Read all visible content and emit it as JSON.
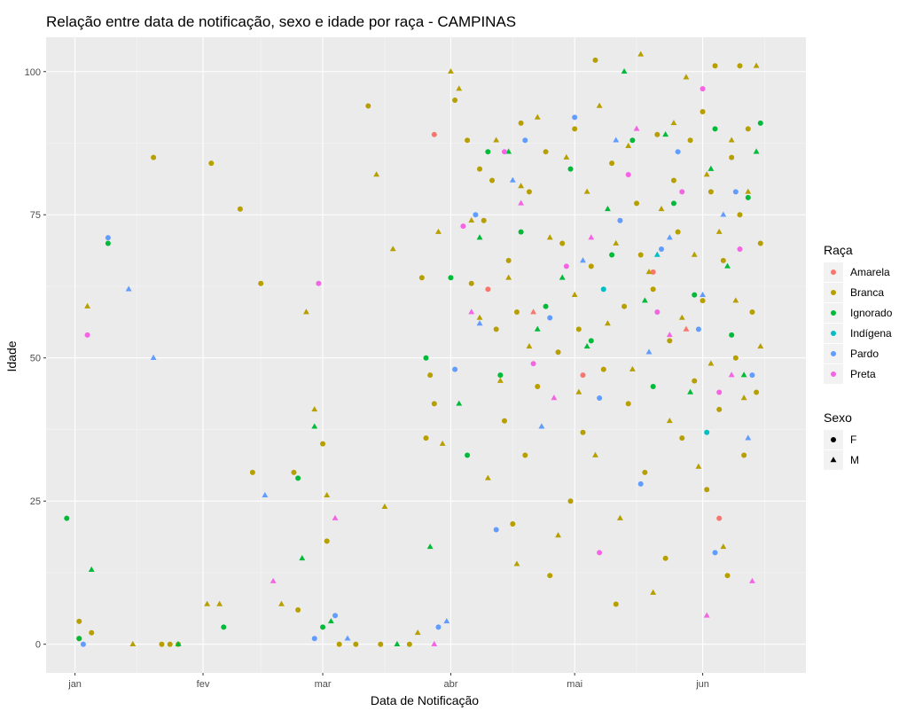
{
  "chart_data": {
    "type": "scatter",
    "title": "Relação entre data de notificação, sexo e idade por raça - CAMPINAS",
    "xlabel": "Data de Notificação",
    "ylabel": "Idade",
    "x_ticks": [
      "jan",
      "fev",
      "mar",
      "abr",
      "mai",
      "jun"
    ],
    "x_tick_dates": [
      "2020-01-01",
      "2020-02-01",
      "2020-03-01",
      "2020-04-01",
      "2020-05-01",
      "2020-06-01"
    ],
    "xlim": [
      "2019-12-25",
      "2020-06-26"
    ],
    "y_ticks": [
      0,
      25,
      50,
      75,
      100
    ],
    "ylim": [
      -5,
      106
    ],
    "grid": true,
    "panel_background": "#ebebeb",
    "legend_position": "right",
    "legend_race": {
      "title": "Raça",
      "items": [
        {
          "name": "Amarela",
          "color": "#F8766D"
        },
        {
          "name": "Branca",
          "color": "#B79F00"
        },
        {
          "name": "Ignorado",
          "color": "#00BA38"
        },
        {
          "name": "Indígena",
          "color": "#00BFC4"
        },
        {
          "name": "Pardo",
          "color": "#619CFF"
        },
        {
          "name": "Preta",
          "color": "#F564E3"
        }
      ]
    },
    "legend_sex": {
      "title": "Sexo",
      "items": [
        {
          "name": "F",
          "shape": "circle"
        },
        {
          "name": "M",
          "shape": "triangle"
        }
      ]
    },
    "series": [
      {
        "name": "Amarela",
        "sex": "F",
        "points": [
          [
            "2020-03-28",
            89
          ],
          [
            "2020-04-10",
            62
          ],
          [
            "2020-05-03",
            47
          ],
          [
            "2020-05-20",
            65
          ],
          [
            "2020-06-05",
            22
          ]
        ]
      },
      {
        "name": "Amarela",
        "sex": "M",
        "points": [
          [
            "2020-04-21",
            58
          ],
          [
            "2020-05-28",
            55
          ]
        ]
      },
      {
        "name": "Branca",
        "sex": "F",
        "points": [
          [
            "2020-01-02",
            1
          ],
          [
            "2020-01-02",
            4
          ],
          [
            "2020-01-05",
            2
          ],
          [
            "2020-01-20",
            85
          ],
          [
            "2020-01-22",
            0
          ],
          [
            "2020-01-24",
            0
          ],
          [
            "2020-01-26",
            0
          ],
          [
            "2020-02-03",
            84
          ],
          [
            "2020-02-10",
            76
          ],
          [
            "2020-02-15",
            63
          ],
          [
            "2020-02-13",
            30
          ],
          [
            "2020-02-24",
            6
          ],
          [
            "2020-02-23",
            30
          ],
          [
            "2020-03-01",
            35
          ],
          [
            "2020-03-02",
            18
          ],
          [
            "2020-03-05",
            0
          ],
          [
            "2020-03-09",
            0
          ],
          [
            "2020-03-12",
            94
          ],
          [
            "2020-03-15",
            0
          ],
          [
            "2020-03-22",
            0
          ],
          [
            "2020-03-25",
            64
          ],
          [
            "2020-03-26",
            36
          ],
          [
            "2020-03-27",
            47
          ],
          [
            "2020-03-28",
            42
          ],
          [
            "2020-04-02",
            95
          ],
          [
            "2020-04-05",
            88
          ],
          [
            "2020-04-06",
            63
          ],
          [
            "2020-04-09",
            74
          ],
          [
            "2020-04-11",
            81
          ],
          [
            "2020-04-12",
            55
          ],
          [
            "2020-04-14",
            39
          ],
          [
            "2020-04-15",
            67
          ],
          [
            "2020-04-16",
            21
          ],
          [
            "2020-04-17",
            58
          ],
          [
            "2020-04-19",
            33
          ],
          [
            "2020-04-20",
            79
          ],
          [
            "2020-04-22",
            45
          ],
          [
            "2020-04-24",
            86
          ],
          [
            "2020-04-25",
            12
          ],
          [
            "2020-04-27",
            51
          ],
          [
            "2020-04-28",
            70
          ],
          [
            "2020-04-30",
            25
          ],
          [
            "2020-05-01",
            90
          ],
          [
            "2020-05-03",
            37
          ],
          [
            "2020-05-05",
            66
          ],
          [
            "2020-05-06",
            102
          ],
          [
            "2020-05-08",
            48
          ],
          [
            "2020-05-10",
            84
          ],
          [
            "2020-05-11",
            7
          ],
          [
            "2020-05-13",
            59
          ],
          [
            "2020-05-14",
            42
          ],
          [
            "2020-05-16",
            77
          ],
          [
            "2020-05-18",
            30
          ],
          [
            "2020-05-20",
            62
          ],
          [
            "2020-05-21",
            89
          ],
          [
            "2020-05-23",
            15
          ],
          [
            "2020-05-24",
            53
          ],
          [
            "2020-05-26",
            72
          ],
          [
            "2020-05-27",
            36
          ],
          [
            "2020-05-29",
            88
          ],
          [
            "2020-05-30",
            46
          ],
          [
            "2020-06-01",
            60
          ],
          [
            "2020-06-02",
            27
          ],
          [
            "2020-06-03",
            79
          ],
          [
            "2020-06-04",
            101
          ],
          [
            "2020-06-05",
            41
          ],
          [
            "2020-06-06",
            67
          ],
          [
            "2020-06-07",
            12
          ],
          [
            "2020-06-08",
            85
          ],
          [
            "2020-06-09",
            50
          ],
          [
            "2020-06-10",
            75
          ],
          [
            "2020-06-11",
            33
          ],
          [
            "2020-06-12",
            90
          ],
          [
            "2020-06-13",
            58
          ],
          [
            "2020-06-14",
            44
          ],
          [
            "2020-06-15",
            70
          ],
          [
            "2020-04-08",
            83
          ],
          [
            "2020-04-18",
            91
          ],
          [
            "2020-05-02",
            55
          ],
          [
            "2020-05-17",
            68
          ],
          [
            "2020-05-25",
            81
          ],
          [
            "2020-06-01",
            93
          ],
          [
            "2020-06-10",
            101
          ]
        ]
      },
      {
        "name": "Branca",
        "sex": "M",
        "points": [
          [
            "2020-01-04",
            59
          ],
          [
            "2020-01-15",
            0
          ],
          [
            "2020-02-02",
            7
          ],
          [
            "2020-02-05",
            7
          ],
          [
            "2020-02-20",
            7
          ],
          [
            "2020-02-26",
            58
          ],
          [
            "2020-02-28",
            41
          ],
          [
            "2020-03-02",
            26
          ],
          [
            "2020-03-14",
            82
          ],
          [
            "2020-03-16",
            24
          ],
          [
            "2020-03-18",
            69
          ],
          [
            "2020-03-24",
            2
          ],
          [
            "2020-03-29",
            72
          ],
          [
            "2020-03-30",
            35
          ],
          [
            "2020-04-01",
            100
          ],
          [
            "2020-04-03",
            97
          ],
          [
            "2020-04-06",
            74
          ],
          [
            "2020-04-08",
            57
          ],
          [
            "2020-04-10",
            29
          ],
          [
            "2020-04-12",
            88
          ],
          [
            "2020-04-13",
            46
          ],
          [
            "2020-04-15",
            64
          ],
          [
            "2020-04-17",
            14
          ],
          [
            "2020-04-18",
            80
          ],
          [
            "2020-04-20",
            52
          ],
          [
            "2020-04-22",
            92
          ],
          [
            "2020-04-23",
            38
          ],
          [
            "2020-04-25",
            71
          ],
          [
            "2020-04-27",
            19
          ],
          [
            "2020-04-29",
            85
          ],
          [
            "2020-05-01",
            61
          ],
          [
            "2020-05-02",
            44
          ],
          [
            "2020-05-04",
            79
          ],
          [
            "2020-05-06",
            33
          ],
          [
            "2020-05-07",
            94
          ],
          [
            "2020-05-09",
            56
          ],
          [
            "2020-05-11",
            70
          ],
          [
            "2020-05-12",
            22
          ],
          [
            "2020-05-14",
            87
          ],
          [
            "2020-05-15",
            48
          ],
          [
            "2020-05-17",
            103
          ],
          [
            "2020-05-19",
            65
          ],
          [
            "2020-05-20",
            9
          ],
          [
            "2020-05-22",
            76
          ],
          [
            "2020-05-24",
            39
          ],
          [
            "2020-05-25",
            91
          ],
          [
            "2020-05-27",
            57
          ],
          [
            "2020-05-28",
            99
          ],
          [
            "2020-05-30",
            68
          ],
          [
            "2020-05-31",
            31
          ],
          [
            "2020-06-02",
            82
          ],
          [
            "2020-06-03",
            49
          ],
          [
            "2020-06-05",
            72
          ],
          [
            "2020-06-06",
            17
          ],
          [
            "2020-06-08",
            88
          ],
          [
            "2020-06-09",
            60
          ],
          [
            "2020-06-11",
            43
          ],
          [
            "2020-06-12",
            79
          ],
          [
            "2020-06-14",
            101
          ],
          [
            "2020-06-15",
            52
          ]
        ]
      },
      {
        "name": "Ignorado",
        "sex": "F",
        "points": [
          [
            "2019-12-30",
            22
          ],
          [
            "2020-01-02",
            1
          ],
          [
            "2020-01-09",
            70
          ],
          [
            "2020-02-06",
            3
          ],
          [
            "2020-02-24",
            29
          ],
          [
            "2020-03-01",
            3
          ],
          [
            "2020-03-26",
            50
          ],
          [
            "2020-04-01",
            64
          ],
          [
            "2020-04-05",
            33
          ],
          [
            "2020-04-10",
            86
          ],
          [
            "2020-04-13",
            47
          ],
          [
            "2020-04-18",
            72
          ],
          [
            "2020-04-24",
            59
          ],
          [
            "2020-04-30",
            83
          ],
          [
            "2020-05-05",
            53
          ],
          [
            "2020-05-10",
            68
          ],
          [
            "2020-05-15",
            88
          ],
          [
            "2020-05-20",
            45
          ],
          [
            "2020-05-25",
            77
          ],
          [
            "2020-05-30",
            61
          ],
          [
            "2020-06-04",
            90
          ],
          [
            "2020-06-08",
            54
          ],
          [
            "2020-06-12",
            78
          ],
          [
            "2020-06-15",
            91
          ]
        ]
      },
      {
        "name": "Ignorado",
        "sex": "M",
        "points": [
          [
            "2020-01-05",
            13
          ],
          [
            "2020-01-26",
            0
          ],
          [
            "2020-02-25",
            15
          ],
          [
            "2020-02-28",
            38
          ],
          [
            "2020-03-03",
            4
          ],
          [
            "2020-03-19",
            0
          ],
          [
            "2020-03-27",
            17
          ],
          [
            "2020-04-03",
            42
          ],
          [
            "2020-04-08",
            71
          ],
          [
            "2020-04-15",
            86
          ],
          [
            "2020-04-22",
            55
          ],
          [
            "2020-04-28",
            64
          ],
          [
            "2020-05-04",
            52
          ],
          [
            "2020-05-09",
            76
          ],
          [
            "2020-05-13",
            100
          ],
          [
            "2020-05-18",
            60
          ],
          [
            "2020-05-23",
            89
          ],
          [
            "2020-05-29",
            44
          ],
          [
            "2020-06-03",
            83
          ],
          [
            "2020-06-07",
            66
          ],
          [
            "2020-06-11",
            47
          ],
          [
            "2020-06-14",
            86
          ]
        ]
      },
      {
        "name": "Indígena",
        "sex": "F",
        "points": [
          [
            "2020-05-08",
            62
          ],
          [
            "2020-06-02",
            37
          ]
        ]
      },
      {
        "name": "Indígena",
        "sex": "M",
        "points": [
          [
            "2020-05-21",
            68
          ]
        ]
      },
      {
        "name": "Pardo",
        "sex": "F",
        "points": [
          [
            "2020-01-03",
            0
          ],
          [
            "2020-01-09",
            71
          ],
          [
            "2020-02-28",
            1
          ],
          [
            "2020-03-04",
            5
          ],
          [
            "2020-03-29",
            3
          ],
          [
            "2020-04-02",
            48
          ],
          [
            "2020-04-07",
            75
          ],
          [
            "2020-04-12",
            20
          ],
          [
            "2020-04-19",
            88
          ],
          [
            "2020-04-25",
            57
          ],
          [
            "2020-05-01",
            92
          ],
          [
            "2020-05-07",
            43
          ],
          [
            "2020-05-12",
            74
          ],
          [
            "2020-05-17",
            28
          ],
          [
            "2020-05-22",
            69
          ],
          [
            "2020-05-26",
            86
          ],
          [
            "2020-05-31",
            55
          ],
          [
            "2020-06-04",
            16
          ],
          [
            "2020-06-09",
            79
          ],
          [
            "2020-06-13",
            47
          ]
        ]
      },
      {
        "name": "Pardo",
        "sex": "M",
        "points": [
          [
            "2020-01-14",
            62
          ],
          [
            "2020-01-20",
            50
          ],
          [
            "2020-02-16",
            26
          ],
          [
            "2020-03-07",
            1
          ],
          [
            "2020-03-31",
            4
          ],
          [
            "2020-04-08",
            56
          ],
          [
            "2020-04-16",
            81
          ],
          [
            "2020-04-23",
            38
          ],
          [
            "2020-05-03",
            67
          ],
          [
            "2020-05-11",
            88
          ],
          [
            "2020-05-19",
            51
          ],
          [
            "2020-05-24",
            71
          ],
          [
            "2020-06-01",
            61
          ],
          [
            "2020-06-06",
            75
          ],
          [
            "2020-06-12",
            36
          ]
        ]
      },
      {
        "name": "Preta",
        "sex": "F",
        "points": [
          [
            "2020-01-04",
            54
          ],
          [
            "2020-02-29",
            63
          ],
          [
            "2020-04-04",
            73
          ],
          [
            "2020-04-14",
            86
          ],
          [
            "2020-04-21",
            49
          ],
          [
            "2020-04-29",
            66
          ],
          [
            "2020-05-07",
            16
          ],
          [
            "2020-05-14",
            82
          ],
          [
            "2020-05-21",
            58
          ],
          [
            "2020-05-27",
            79
          ],
          [
            "2020-06-01",
            97
          ],
          [
            "2020-06-05",
            44
          ],
          [
            "2020-06-10",
            69
          ]
        ]
      },
      {
        "name": "Preta",
        "sex": "M",
        "points": [
          [
            "2020-02-18",
            11
          ],
          [
            "2020-03-04",
            22
          ],
          [
            "2020-03-28",
            0
          ],
          [
            "2020-04-06",
            58
          ],
          [
            "2020-04-18",
            77
          ],
          [
            "2020-04-26",
            43
          ],
          [
            "2020-05-05",
            71
          ],
          [
            "2020-05-16",
            90
          ],
          [
            "2020-05-24",
            54
          ],
          [
            "2020-06-02",
            5
          ],
          [
            "2020-06-08",
            47
          ],
          [
            "2020-06-13",
            11
          ]
        ]
      }
    ]
  }
}
